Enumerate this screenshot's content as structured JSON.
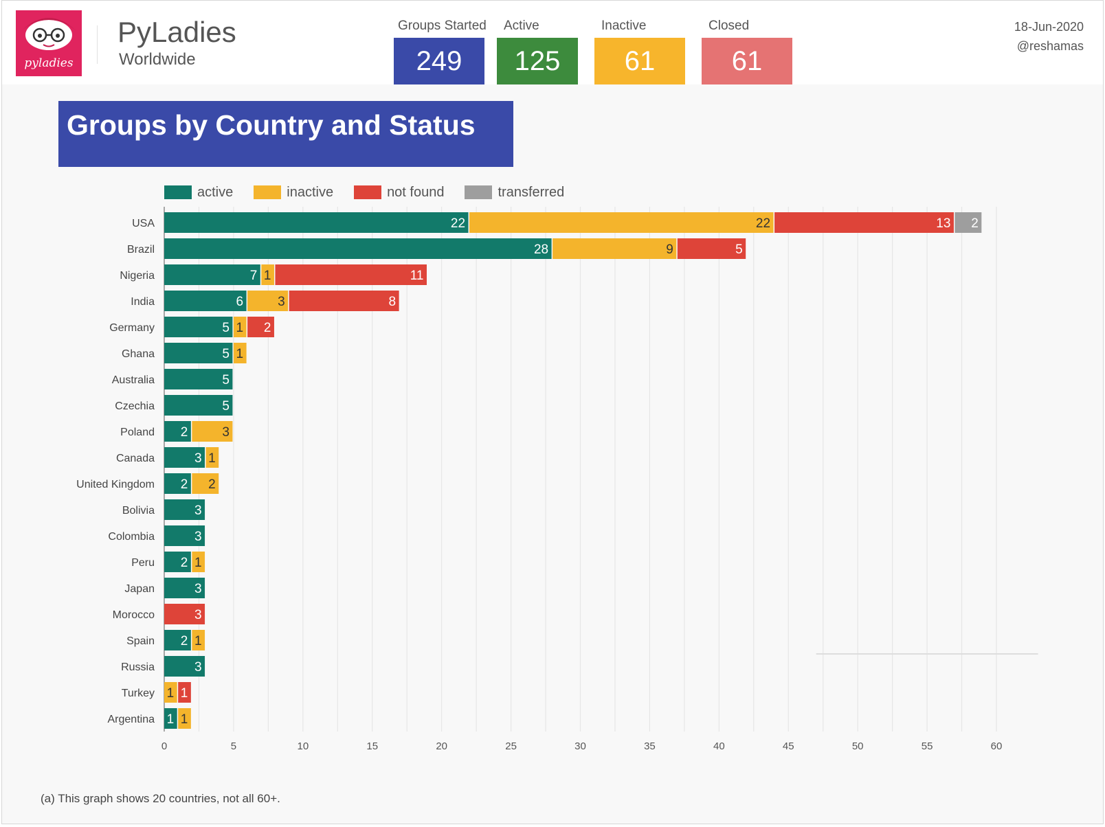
{
  "header": {
    "brand_title": "PyLadies",
    "brand_subtitle": "Worldwide",
    "logo_text": "pyladies",
    "date": "18-Jun-2020",
    "author": "@reshamas"
  },
  "kpis": [
    {
      "label": "Groups Started",
      "value": "249",
      "color": "#3a4aa8"
    },
    {
      "label": "Active",
      "value": "125",
      "color": "#3d8b3d"
    },
    {
      "label": "Inactive",
      "value": "61",
      "color": "#f7b52c"
    },
    {
      "label": "Closed",
      "value": "61",
      "color": "#e57373"
    }
  ],
  "chart_data": {
    "type": "bar",
    "orientation": "horizontal",
    "stacked": true,
    "title": "Groups by Country and Status",
    "categories": [
      "USA",
      "Brazil",
      "Nigeria",
      "India",
      "Germany",
      "Ghana",
      "Australia",
      "Czechia",
      "Poland",
      "Canada",
      "United Kingdom",
      "Bolivia",
      "Colombia",
      "Peru",
      "Japan",
      "Morocco",
      "Spain",
      "Russia",
      "Turkey",
      "Argentina"
    ],
    "series": [
      {
        "name": "active",
        "color": "#127a6a",
        "values": [
          22,
          28,
          7,
          6,
          5,
          5,
          5,
          5,
          2,
          3,
          2,
          3,
          3,
          2,
          3,
          0,
          2,
          3,
          0,
          1
        ]
      },
      {
        "name": "inactive",
        "color": "#f4b42c",
        "values": [
          22,
          9,
          1,
          3,
          1,
          1,
          0,
          0,
          3,
          1,
          2,
          0,
          0,
          1,
          0,
          0,
          1,
          0,
          1,
          1
        ]
      },
      {
        "name": "not found",
        "color": "#de4439",
        "values": [
          13,
          5,
          11,
          8,
          2,
          0,
          0,
          0,
          0,
          0,
          0,
          0,
          0,
          0,
          0,
          3,
          0,
          0,
          1,
          0
        ]
      },
      {
        "name": "transferred",
        "color": "#9e9e9e",
        "values": [
          2,
          0,
          0,
          0,
          0,
          0,
          0,
          0,
          0,
          0,
          0,
          0,
          0,
          0,
          0,
          0,
          0,
          0,
          0,
          0
        ]
      }
    ],
    "xlim": [
      0,
      60
    ],
    "xticks": [
      0,
      5,
      10,
      15,
      20,
      25,
      30,
      35,
      40,
      45,
      50,
      55,
      60
    ],
    "grid": true,
    "legend_position": "top-left"
  },
  "footnote": "(a) This graph shows 20 countries, not all 60+."
}
